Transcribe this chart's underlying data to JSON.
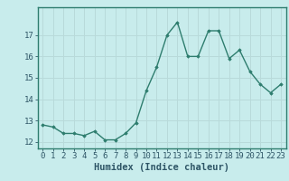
{
  "x": [
    0,
    1,
    2,
    3,
    4,
    5,
    6,
    7,
    8,
    9,
    10,
    11,
    12,
    13,
    14,
    15,
    16,
    17,
    18,
    19,
    20,
    21,
    22,
    23
  ],
  "y": [
    12.8,
    12.7,
    12.4,
    12.4,
    12.3,
    12.5,
    12.1,
    12.1,
    12.4,
    12.9,
    14.4,
    15.5,
    17.0,
    17.6,
    16.0,
    16.0,
    17.2,
    17.2,
    15.9,
    16.3,
    15.3,
    14.7,
    14.3,
    14.7
  ],
  "line_color": "#2e7d6e",
  "marker": "D",
  "marker_size": 1.8,
  "bg_color": "#c8ecec",
  "grid_color": "#b0d8d8",
  "axis_color": "#2e7d6e",
  "tick_color": "#2e5566",
  "xlabel": "Humidex (Indice chaleur)",
  "xlim": [
    -0.5,
    23.5
  ],
  "ylim": [
    11.7,
    18.3
  ],
  "yticks": [
    12,
    13,
    14,
    15,
    16,
    17
  ],
  "xticks": [
    0,
    1,
    2,
    3,
    4,
    5,
    6,
    7,
    8,
    9,
    10,
    11,
    12,
    13,
    14,
    15,
    16,
    17,
    18,
    19,
    20,
    21,
    22,
    23
  ],
  "xtick_labels": [
    "0",
    "1",
    "2",
    "3",
    "4",
    "5",
    "6",
    "7",
    "8",
    "9",
    "10",
    "11",
    "12",
    "13",
    "14",
    "15",
    "16",
    "17",
    "18",
    "19",
    "20",
    "21",
    "22",
    "23"
  ],
  "font_size": 6.5,
  "xlabel_size": 7.5,
  "line_width": 1.0
}
